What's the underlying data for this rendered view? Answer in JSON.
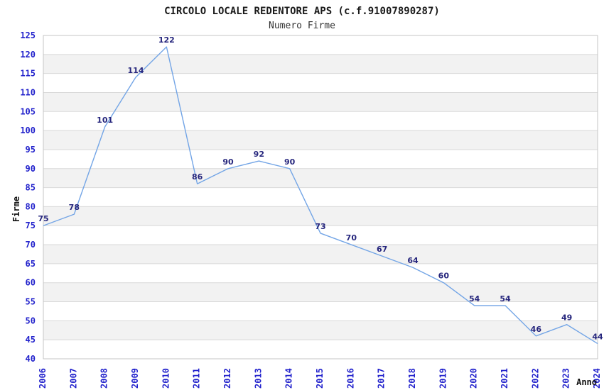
{
  "chart_data": {
    "type": "line",
    "title": "CIRCOLO LOCALE REDENTORE APS (c.f.91007890287)",
    "subtitle": "Numero Firme",
    "xlabel": "Anno",
    "ylabel": "Firme",
    "categories": [
      "2006",
      "2007",
      "2008",
      "2009",
      "2010",
      "2011",
      "2012",
      "2013",
      "2014",
      "2015",
      "2016",
      "2017",
      "2018",
      "2019",
      "2020",
      "2021",
      "2022",
      "2023",
      "2024"
    ],
    "values": [
      75,
      78,
      101,
      114,
      122,
      86,
      90,
      92,
      90,
      73,
      70,
      67,
      64,
      60,
      54,
      54,
      46,
      49,
      44
    ],
    "ylim": [
      40,
      125
    ],
    "ytick_step": 5,
    "grid": "horizontal-bands-alternating",
    "legend": "none",
    "point_labels_visible": true,
    "x_tick_rotation_deg": -90,
    "colors": {
      "line": "#73a5e6",
      "tick_label": "#2222cc",
      "point_label": "#26267d",
      "band_fill": "#f2f2f2",
      "gridline": "#d8d8d8",
      "plot_border": "#c6c6c6",
      "background": "#ffffff",
      "title": "#1a1a1a",
      "subtitle": "#333333",
      "axis_title": "#111111"
    }
  }
}
